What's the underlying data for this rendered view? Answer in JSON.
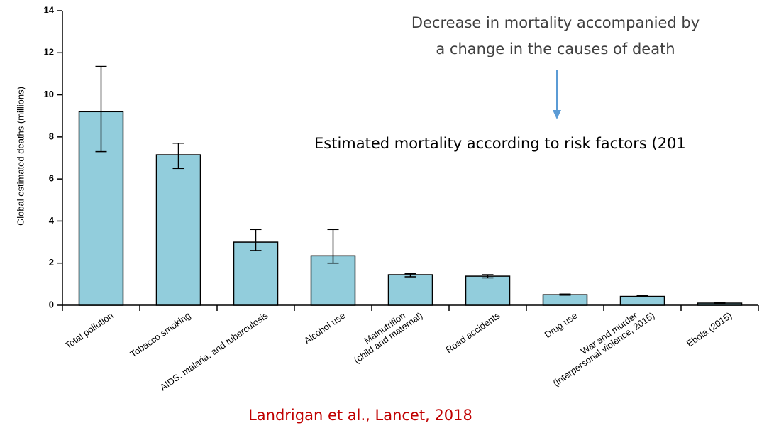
{
  "chart_data": {
    "type": "bar",
    "annotation": [
      "Decrease in mortality accompanied by",
      "a change in the causes of death"
    ],
    "subtitle": "Estimated mortality according to risk factors (201",
    "source": "Landrigan et al., Lancet, 2018",
    "y_label": "Global estimated deaths (millions)",
    "categories": [
      [
        "Total pollution"
      ],
      [
        "Tobacco smoking"
      ],
      [
        "AIDS, malaria, and tuberculosis"
      ],
      [
        "Alcohol use"
      ],
      [
        "Malnutrition",
        "(child and maternal)"
      ],
      [
        "Road accidents"
      ],
      [
        "Drug use"
      ],
      [
        "War and murder",
        "(interpersonal violence, 2015)"
      ],
      [
        "Ebola (2015)"
      ]
    ],
    "values": [
      9.2,
      7.15,
      3.0,
      2.35,
      1.45,
      1.38,
      0.5,
      0.42,
      0.1
    ],
    "error_low": [
      7.3,
      6.5,
      2.6,
      2.0,
      1.35,
      1.3,
      0.48,
      0.4,
      0.08
    ],
    "error_high": [
      11.35,
      7.7,
      3.6,
      3.6,
      1.5,
      1.45,
      0.53,
      0.45,
      0.12
    ],
    "color": "#92cddc",
    "ylim": [
      0,
      14
    ],
    "yticks": [
      0,
      2,
      4,
      6,
      8,
      10,
      12,
      14
    ]
  }
}
